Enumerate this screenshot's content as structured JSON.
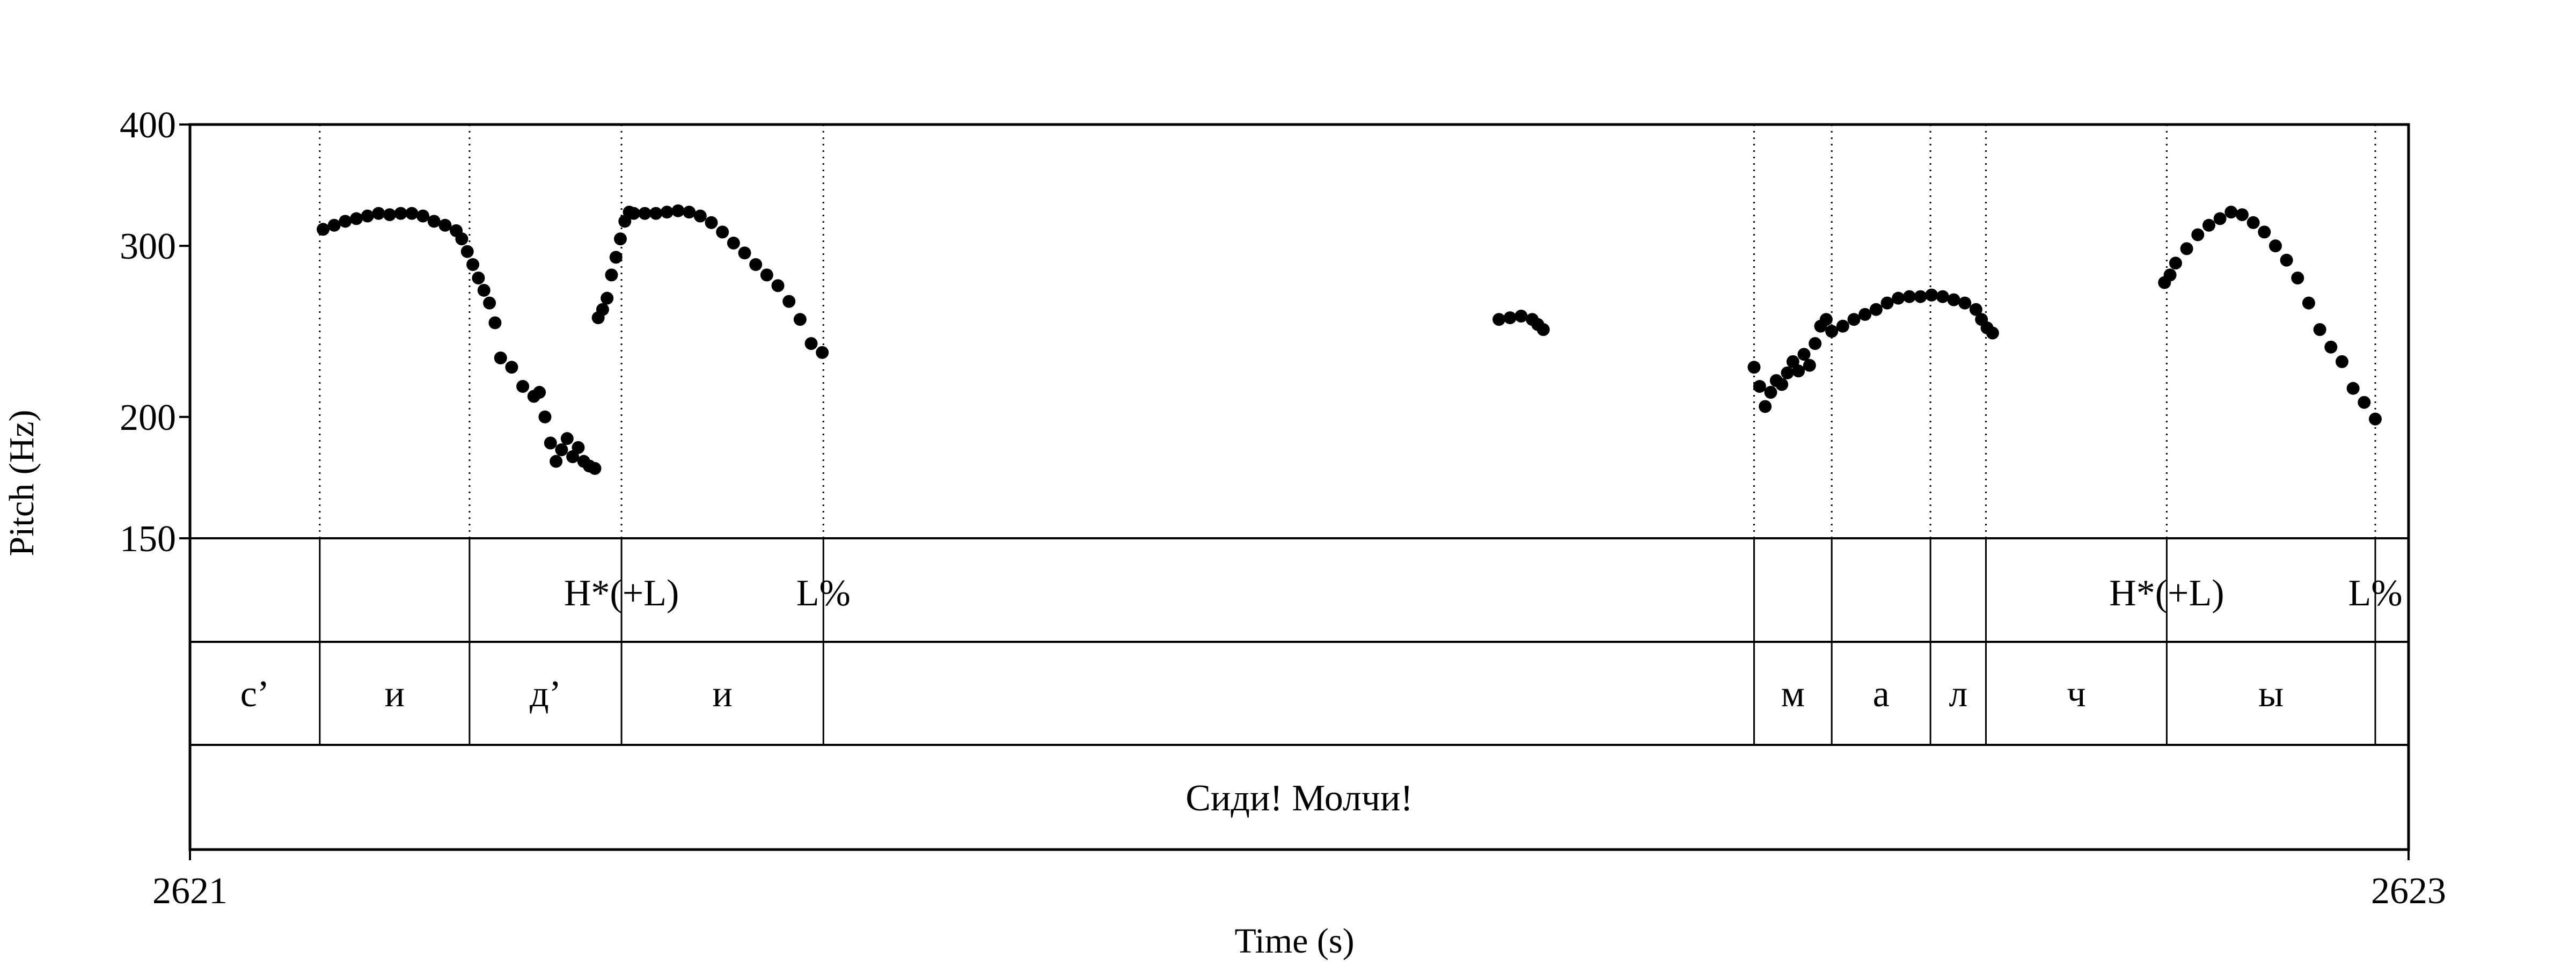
{
  "chart_data": {
    "type": "scatter",
    "title": "",
    "xlabel": "Time (s)",
    "ylabel": "Pitch (Hz)",
    "x_range": [
      2621,
      2623
    ],
    "x_tick_labels": [
      "2621",
      "2623"
    ],
    "ylim": [
      150,
      400
    ],
    "y_scale": "log",
    "y_ticks": [
      150,
      200,
      300,
      400
    ],
    "y_tick_labels": [
      "150",
      "200",
      "300",
      "400"
    ],
    "grid": false,
    "boundaries": [
      2621.117,
      2621.252,
      2621.389,
      2621.571,
      2622.41,
      2622.48,
      2622.569,
      2622.619,
      2622.782,
      2622.97
    ],
    "tone_tier": [
      {
        "x": 2621.389,
        "label": "H*(+L)"
      },
      {
        "x": 2621.571,
        "label": "L%"
      },
      {
        "x": 2622.782,
        "label": "H*(+L)"
      },
      {
        "x": 2622.97,
        "label": "L%"
      }
    ],
    "segment_tier": [
      {
        "start": 2621.0,
        "end": 2621.117,
        "label": "с’"
      },
      {
        "start": 2621.117,
        "end": 2621.252,
        "label": "и"
      },
      {
        "start": 2621.252,
        "end": 2621.389,
        "label": "д’"
      },
      {
        "start": 2621.389,
        "end": 2621.571,
        "label": "и"
      },
      {
        "start": 2621.571,
        "end": 2622.41,
        "label": ""
      },
      {
        "start": 2622.41,
        "end": 2622.48,
        "label": "м"
      },
      {
        "start": 2622.48,
        "end": 2622.569,
        "label": "а"
      },
      {
        "start": 2622.569,
        "end": 2622.619,
        "label": "л"
      },
      {
        "start": 2622.619,
        "end": 2622.782,
        "label": "ч"
      },
      {
        "start": 2622.782,
        "end": 2622.97,
        "label": "ы"
      },
      {
        "start": 2622.97,
        "end": 2623.0,
        "label": ""
      }
    ],
    "utterance_tier": [
      {
        "start": 2621.0,
        "end": 2623.0,
        "label": "Сиди! Молчи!"
      }
    ],
    "series": [
      {
        "points": [
          [
            2621.12,
            312
          ],
          [
            2621.13,
            315
          ],
          [
            2621.14,
            318
          ],
          [
            2621.15,
            320
          ],
          [
            2621.16,
            322
          ],
          [
            2621.17,
            324
          ],
          [
            2621.18,
            323
          ],
          [
            2621.19,
            324
          ],
          [
            2621.2,
            324
          ],
          [
            2621.21,
            322
          ],
          [
            2621.22,
            318
          ],
          [
            2621.23,
            315
          ],
          [
            2621.24,
            311
          ],
          [
            2621.245,
            305
          ],
          [
            2621.25,
            296
          ],
          [
            2621.255,
            287
          ],
          [
            2621.26,
            278
          ],
          [
            2621.265,
            270
          ],
          [
            2621.27,
            262
          ],
          [
            2621.275,
            250
          ],
          [
            2621.28,
            230
          ],
          [
            2621.29,
            225
          ],
          [
            2621.3,
            215
          ],
          [
            2621.31,
            210
          ],
          [
            2621.315,
            212
          ],
          [
            2621.32,
            200
          ],
          [
            2621.325,
            188
          ],
          [
            2621.33,
            180
          ],
          [
            2621.335,
            185
          ],
          [
            2621.34,
            190
          ],
          [
            2621.345,
            182
          ],
          [
            2621.35,
            186
          ],
          [
            2621.355,
            180
          ],
          [
            2621.36,
            178
          ],
          [
            2621.365,
            177
          ]
        ]
      },
      {
        "points": [
          [
            2621.368,
            253
          ],
          [
            2621.372,
            258
          ],
          [
            2621.376,
            265
          ],
          [
            2621.38,
            280
          ],
          [
            2621.384,
            292
          ],
          [
            2621.388,
            305
          ],
          [
            2621.392,
            318
          ],
          [
            2621.396,
            325
          ],
          [
            2621.4,
            324
          ],
          [
            2621.41,
            324
          ],
          [
            2621.42,
            324
          ],
          [
            2621.43,
            325
          ],
          [
            2621.44,
            326
          ],
          [
            2621.45,
            325
          ],
          [
            2621.46,
            322
          ],
          [
            2621.47,
            317
          ],
          [
            2621.48,
            310
          ],
          [
            2621.49,
            302
          ],
          [
            2621.5,
            295
          ],
          [
            2621.51,
            287
          ],
          [
            2621.52,
            280
          ],
          [
            2621.53,
            273
          ],
          [
            2621.54,
            263
          ],
          [
            2621.55,
            252
          ],
          [
            2621.56,
            238
          ],
          [
            2621.57,
            233
          ]
        ]
      },
      {
        "points": [
          [
            2622.18,
            252
          ],
          [
            2622.19,
            253
          ],
          [
            2622.2,
            254
          ],
          [
            2622.21,
            252
          ],
          [
            2622.215,
            249
          ],
          [
            2622.22,
            246
          ]
        ]
      },
      {
        "points": [
          [
            2622.41,
            225
          ],
          [
            2622.415,
            215
          ],
          [
            2622.42,
            205
          ],
          [
            2622.425,
            212
          ],
          [
            2622.43,
            218
          ],
          [
            2622.435,
            216
          ],
          [
            2622.44,
            222
          ],
          [
            2622.445,
            228
          ],
          [
            2622.45,
            223
          ],
          [
            2622.455,
            232
          ],
          [
            2622.46,
            226
          ],
          [
            2622.465,
            238
          ],
          [
            2622.47,
            248
          ],
          [
            2622.475,
            252
          ],
          [
            2622.48,
            245
          ],
          [
            2622.49,
            248
          ],
          [
            2622.5,
            252
          ],
          [
            2622.51,
            255
          ],
          [
            2622.52,
            258
          ],
          [
            2622.53,
            262
          ],
          [
            2622.54,
            265
          ],
          [
            2622.55,
            266
          ],
          [
            2622.56,
            266
          ],
          [
            2622.57,
            267
          ],
          [
            2622.58,
            266
          ],
          [
            2622.59,
            264
          ],
          [
            2622.6,
            262
          ],
          [
            2622.61,
            258
          ],
          [
            2622.615,
            252
          ],
          [
            2622.62,
            247
          ],
          [
            2622.625,
            244
          ]
        ]
      },
      {
        "points": [
          [
            2622.78,
            275
          ],
          [
            2622.785,
            280
          ],
          [
            2622.79,
            288
          ],
          [
            2622.8,
            298
          ],
          [
            2622.81,
            308
          ],
          [
            2622.82,
            315
          ],
          [
            2622.83,
            320
          ],
          [
            2622.84,
            325
          ],
          [
            2622.85,
            323
          ],
          [
            2622.86,
            317
          ],
          [
            2622.87,
            310
          ],
          [
            2622.88,
            300
          ],
          [
            2622.89,
            290
          ],
          [
            2622.9,
            278
          ],
          [
            2622.91,
            262
          ],
          [
            2622.92,
            246
          ],
          [
            2622.93,
            236
          ],
          [
            2622.94,
            228
          ],
          [
            2622.95,
            214
          ],
          [
            2622.96,
            207
          ],
          [
            2622.97,
            199
          ]
        ]
      }
    ]
  }
}
